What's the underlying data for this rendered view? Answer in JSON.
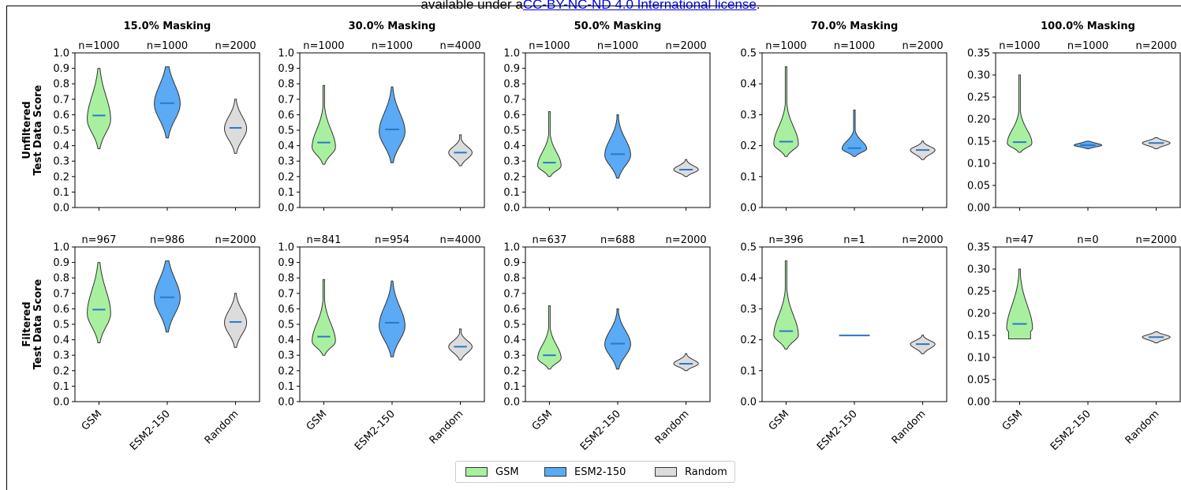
{
  "header": {
    "prefix": "available under a",
    "link": "CC-BY-NC-ND 4.0 International license",
    "suffix": "."
  },
  "legend": [
    {
      "label": "GSM",
      "color": "#a8f0a0"
    },
    {
      "label": "ESM2-150",
      "color": "#5aaaf5"
    },
    {
      "label": "Random",
      "color": "#dcdcdc"
    }
  ],
  "chart_data": {
    "type": "violin",
    "categories": [
      "GSM",
      "ESM2-150",
      "Random"
    ],
    "row_labels": [
      "Unfiltered\nTest Data Score",
      "Filtered\nTest Data Score"
    ],
    "median_color": "#2a78c8",
    "columns": [
      {
        "title": "15.0% Masking",
        "ylim": [
          0,
          1.0
        ],
        "yticks": [
          "0.0",
          "0.1",
          "0.2",
          "0.3",
          "0.4",
          "0.5",
          "0.6",
          "0.7",
          "0.8",
          "0.9",
          "1.0"
        ],
        "rows": [
          {
            "series": [
              {
                "category": "GSM",
                "n": "n=1000",
                "min": 0.38,
                "max": 0.9,
                "median": 0.595,
                "mode": 0.57,
                "width": 0.38,
                "tail": 2.2
              },
              {
                "category": "ESM2-150",
                "n": "n=1000",
                "min": 0.45,
                "max": 0.91,
                "median": 0.675,
                "mode": 0.67,
                "width": 0.42,
                "tail": 2.0
              },
              {
                "category": "Random",
                "n": "n=2000",
                "min": 0.35,
                "max": 0.7,
                "median": 0.515,
                "mode": 0.51,
                "width": 0.36,
                "tail": 2.4
              }
            ]
          },
          {
            "series": [
              {
                "category": "GSM",
                "n": "n=967",
                "min": 0.38,
                "max": 0.9,
                "median": 0.595,
                "mode": 0.57,
                "width": 0.38,
                "tail": 2.2
              },
              {
                "category": "ESM2-150",
                "n": "n=986",
                "min": 0.45,
                "max": 0.91,
                "median": 0.675,
                "mode": 0.67,
                "width": 0.42,
                "tail": 2.0
              },
              {
                "category": "Random",
                "n": "n=2000",
                "min": 0.35,
                "max": 0.7,
                "median": 0.515,
                "mode": 0.51,
                "width": 0.36,
                "tail": 2.4
              }
            ]
          }
        ]
      },
      {
        "title": "30.0% Masking",
        "ylim": [
          0,
          1.0
        ],
        "yticks": [
          "0.0",
          "0.1",
          "0.2",
          "0.3",
          "0.4",
          "0.5",
          "0.6",
          "0.7",
          "0.8",
          "0.9",
          "1.0"
        ],
        "rows": [
          {
            "series": [
              {
                "category": "GSM",
                "n": "n=1000",
                "min": 0.28,
                "max": 0.79,
                "median": 0.42,
                "mode": 0.39,
                "width": 0.38,
                "tail": 3.5
              },
              {
                "category": "ESM2-150",
                "n": "n=1000",
                "min": 0.29,
                "max": 0.78,
                "median": 0.505,
                "mode": 0.49,
                "width": 0.42,
                "tail": 2.4
              },
              {
                "category": "Random",
                "n": "n=4000",
                "min": 0.27,
                "max": 0.47,
                "median": 0.355,
                "mode": 0.355,
                "width": 0.38,
                "tail": 3.0
              }
            ]
          },
          {
            "series": [
              {
                "category": "GSM",
                "n": "n=841",
                "min": 0.3,
                "max": 0.79,
                "median": 0.42,
                "mode": 0.39,
                "width": 0.38,
                "tail": 3.5
              },
              {
                "category": "ESM2-150",
                "n": "n=954",
                "min": 0.29,
                "max": 0.78,
                "median": 0.51,
                "mode": 0.49,
                "width": 0.42,
                "tail": 2.4
              },
              {
                "category": "Random",
                "n": "n=4000",
                "min": 0.27,
                "max": 0.47,
                "median": 0.355,
                "mode": 0.355,
                "width": 0.38,
                "tail": 3.0
              }
            ]
          }
        ]
      },
      {
        "title": "50.0% Masking",
        "ylim": [
          0,
          1.0
        ],
        "yticks": [
          "0.0",
          "0.1",
          "0.2",
          "0.3",
          "0.4",
          "0.5",
          "0.6",
          "0.7",
          "0.8",
          "0.9",
          "1.0"
        ],
        "rows": [
          {
            "series": [
              {
                "category": "GSM",
                "n": "n=1000",
                "min": 0.2,
                "max": 0.62,
                "median": 0.29,
                "mode": 0.27,
                "width": 0.38,
                "tail": 4.0
              },
              {
                "category": "ESM2-150",
                "n": "n=1000",
                "min": 0.19,
                "max": 0.6,
                "median": 0.345,
                "mode": 0.34,
                "width": 0.42,
                "tail": 2.6
              },
              {
                "category": "Random",
                "n": "n=2000",
                "min": 0.2,
                "max": 0.31,
                "median": 0.245,
                "mode": 0.245,
                "width": 0.4,
                "tail": 2.6
              }
            ]
          },
          {
            "series": [
              {
                "category": "GSM",
                "n": "n=637",
                "min": 0.21,
                "max": 0.62,
                "median": 0.3,
                "mode": 0.28,
                "width": 0.38,
                "tail": 4.0
              },
              {
                "category": "ESM2-150",
                "n": "n=688",
                "min": 0.21,
                "max": 0.6,
                "median": 0.375,
                "mode": 0.37,
                "width": 0.42,
                "tail": 2.6
              },
              {
                "category": "Random",
                "n": "n=2000",
                "min": 0.2,
                "max": 0.31,
                "median": 0.245,
                "mode": 0.245,
                "width": 0.4,
                "tail": 2.6
              }
            ]
          }
        ]
      },
      {
        "title": "70.0% Masking",
        "ylim": [
          0,
          0.5
        ],
        "yticks": [
          "0.0",
          "0.1",
          "0.2",
          "0.3",
          "0.4",
          "0.5"
        ],
        "rows": [
          {
            "series": [
              {
                "category": "GSM",
                "n": "n=1000",
                "min": 0.165,
                "max": 0.455,
                "median": 0.213,
                "mode": 0.205,
                "width": 0.4,
                "tail": 4.5
              },
              {
                "category": "ESM2-150",
                "n": "n=1000",
                "min": 0.165,
                "max": 0.315,
                "median": 0.192,
                "mode": 0.19,
                "width": 0.4,
                "tail": 5.0
              },
              {
                "category": "Random",
                "n": "n=2000",
                "min": 0.155,
                "max": 0.215,
                "median": 0.186,
                "mode": 0.186,
                "width": 0.4,
                "tail": 2.6
              }
            ]
          },
          {
            "series": [
              {
                "category": "GSM",
                "n": "n=396",
                "min": 0.17,
                "max": 0.455,
                "median": 0.228,
                "mode": 0.215,
                "width": 0.4,
                "tail": 3.8
              },
              {
                "category": "ESM2-150",
                "n": "n=1",
                "min": 0.214,
                "max": 0.214,
                "median": 0.214,
                "mode": 0.214,
                "width": 0.5,
                "tail": 1.0,
                "single": true
              },
              {
                "category": "Random",
                "n": "n=2000",
                "min": 0.155,
                "max": 0.215,
                "median": 0.186,
                "mode": 0.186,
                "width": 0.4,
                "tail": 2.6
              }
            ]
          }
        ]
      },
      {
        "title": "100.0% Masking",
        "ylim": [
          0,
          0.35
        ],
        "yticks": [
          "0.00",
          "0.05",
          "0.10",
          "0.15",
          "0.20",
          "0.25",
          "0.30",
          "0.35"
        ],
        "rows": [
          {
            "series": [
              {
                "category": "GSM",
                "n": "n=1000",
                "min": 0.125,
                "max": 0.3,
                "median": 0.148,
                "mode": 0.145,
                "width": 0.4,
                "tail": 5.0
              },
              {
                "category": "ESM2-150",
                "n": "n=1000",
                "min": 0.133,
                "max": 0.15,
                "median": 0.141,
                "mode": 0.141,
                "width": 0.45,
                "tail": 2.0
              },
              {
                "category": "Random",
                "n": "n=2000",
                "min": 0.133,
                "max": 0.158,
                "median": 0.146,
                "mode": 0.146,
                "width": 0.45,
                "tail": 2.2
              }
            ]
          },
          {
            "series": [
              {
                "category": "GSM",
                "n": "n=47",
                "min": 0.142,
                "max": 0.3,
                "median": 0.176,
                "mode": 0.165,
                "width": 0.42,
                "tail": 2.6,
                "flatbottom": true
              },
              {
                "category": "ESM2-150",
                "n": "n=0",
                "empty": true
              },
              {
                "category": "Random",
                "n": "n=2000",
                "min": 0.133,
                "max": 0.158,
                "median": 0.146,
                "mode": 0.146,
                "width": 0.45,
                "tail": 2.2
              }
            ]
          }
        ]
      }
    ]
  }
}
